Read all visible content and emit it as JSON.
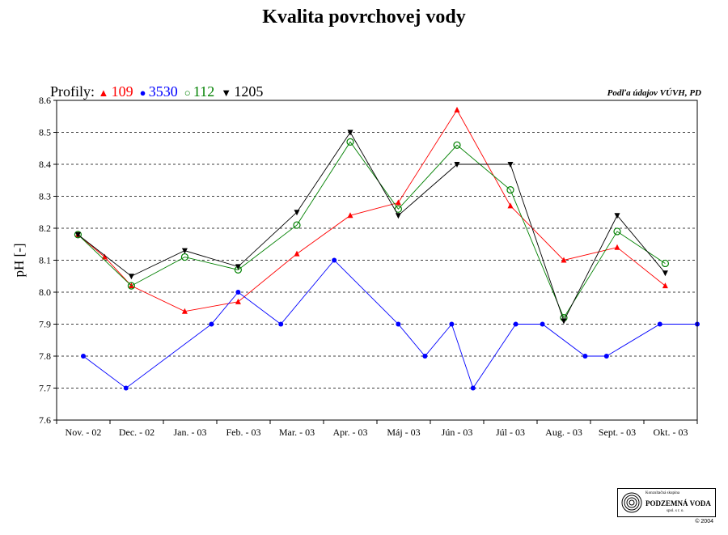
{
  "chart_data": {
    "type": "line",
    "title": "Kvalita povrchovej vody",
    "ylabel": "pH [-]",
    "xlabel": "",
    "legend_title": "Profily:",
    "source_note": "Podľa údajov VÚVH, PD",
    "ylim": [
      7.6,
      8.6
    ],
    "ytick_step": 0.1,
    "grid": "horizontal dashed",
    "legend_position": "top-left",
    "categories": [
      "Nov. - 02",
      "Dec. - 02",
      "Jan. - 03",
      "Feb. - 03",
      "Mar. - 03",
      "Apr. - 03",
      "Máj - 03",
      "Jún - 03",
      "Júl - 03",
      "Aug. - 03",
      "Sept. - 03",
      "Okt. - 03"
    ],
    "series": [
      {
        "name": "109",
        "color": "#ff0000",
        "marker": "triangle-up",
        "points": [
          {
            "x": 0.4,
            "y": 8.18
          },
          {
            "x": 0.9,
            "y": 8.11
          },
          {
            "x": 1.4,
            "y": 8.02
          },
          {
            "x": 2.4,
            "y": 7.94
          },
          {
            "x": 3.4,
            "y": 7.97
          },
          {
            "x": 4.5,
            "y": 8.12
          },
          {
            "x": 5.5,
            "y": 8.24
          },
          {
            "x": 6.4,
            "y": 8.28
          },
          {
            "x": 7.5,
            "y": 8.57
          },
          {
            "x": 8.5,
            "y": 8.27
          },
          {
            "x": 9.5,
            "y": 8.1
          },
          {
            "x": 10.5,
            "y": 8.14
          },
          {
            "x": 11.4,
            "y": 8.02
          }
        ]
      },
      {
        "name": "3530",
        "color": "#0000ff",
        "marker": "circle-filled",
        "points": [
          {
            "x": 0.5,
            "y": 7.8
          },
          {
            "x": 1.3,
            "y": 7.7
          },
          {
            "x": 2.9,
            "y": 7.9
          },
          {
            "x": 3.4,
            "y": 8.0
          },
          {
            "x": 4.2,
            "y": 7.9
          },
          {
            "x": 5.2,
            "y": 8.1
          },
          {
            "x": 6.4,
            "y": 7.9
          },
          {
            "x": 6.9,
            "y": 7.8
          },
          {
            "x": 7.4,
            "y": 7.9
          },
          {
            "x": 7.8,
            "y": 7.7
          },
          {
            "x": 8.6,
            "y": 7.9
          },
          {
            "x": 9.1,
            "y": 7.9
          },
          {
            "x": 9.9,
            "y": 7.8
          },
          {
            "x": 10.3,
            "y": 7.8
          },
          {
            "x": 11.3,
            "y": 7.9
          },
          {
            "x": 12.0,
            "y": 7.9
          }
        ]
      },
      {
        "name": "112",
        "color": "#008000",
        "marker": "circle-open",
        "points": [
          {
            "x": 0.4,
            "y": 8.18
          },
          {
            "x": 1.4,
            "y": 8.02
          },
          {
            "x": 2.4,
            "y": 8.11
          },
          {
            "x": 3.4,
            "y": 8.07
          },
          {
            "x": 4.5,
            "y": 8.21
          },
          {
            "x": 5.5,
            "y": 8.47
          },
          {
            "x": 6.4,
            "y": 8.26
          },
          {
            "x": 7.5,
            "y": 8.46
          },
          {
            "x": 8.5,
            "y": 8.32
          },
          {
            "x": 9.5,
            "y": 7.92
          },
          {
            "x": 10.5,
            "y": 8.19
          },
          {
            "x": 11.4,
            "y": 8.09
          }
        ]
      },
      {
        "name": "1205",
        "color": "#000000",
        "marker": "triangle-down",
        "points": [
          {
            "x": 0.4,
            "y": 8.18
          },
          {
            "x": 1.4,
            "y": 8.05
          },
          {
            "x": 2.4,
            "y": 8.13
          },
          {
            "x": 3.4,
            "y": 8.08
          },
          {
            "x": 4.5,
            "y": 8.25
          },
          {
            "x": 5.5,
            "y": 8.5
          },
          {
            "x": 6.4,
            "y": 8.24
          },
          {
            "x": 7.5,
            "y": 8.4
          },
          {
            "x": 8.5,
            "y": 8.4
          },
          {
            "x": 9.5,
            "y": 7.91
          },
          {
            "x": 10.5,
            "y": 8.24
          },
          {
            "x": 11.4,
            "y": 8.06
          }
        ]
      }
    ]
  },
  "logo": {
    "line1": "Konzultačná skupina",
    "line2": "PODZEMNÁ VODA",
    "line3": "spol. s r. o."
  },
  "copyright": "© 2004"
}
